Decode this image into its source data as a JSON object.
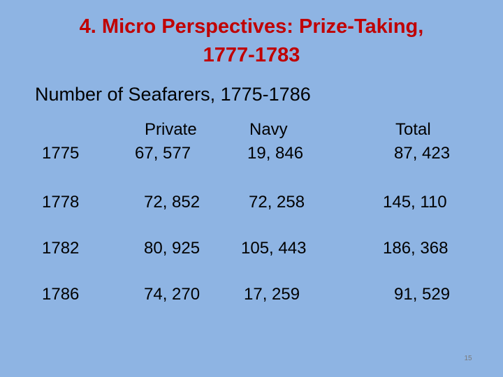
{
  "title": {
    "line1": "4.  Micro Perspectives: Prize-Taking,",
    "line2": "1777-1783"
  },
  "subtitle": "Number of Seafarers, 1775-1786",
  "table": {
    "headers": [
      "Private",
      "Navy",
      "Total"
    ],
    "rows": [
      {
        "year": "1775",
        "private": "67, 577",
        "navy": "19, 846",
        "total": "87, 423"
      },
      {
        "year": "1778",
        "private": "72, 852",
        "navy": "72, 258",
        "total": "145, 110"
      },
      {
        "year": "1782",
        "private": "80, 925",
        "navy": "105, 443",
        "total": "186, 368"
      },
      {
        "year": "1786",
        "private": "74, 270",
        "navy": "17, 259",
        "total": "91, 529"
      }
    ]
  },
  "slide_number": "15",
  "colors": {
    "background": "#8eb4e3",
    "title": "#c00000"
  }
}
